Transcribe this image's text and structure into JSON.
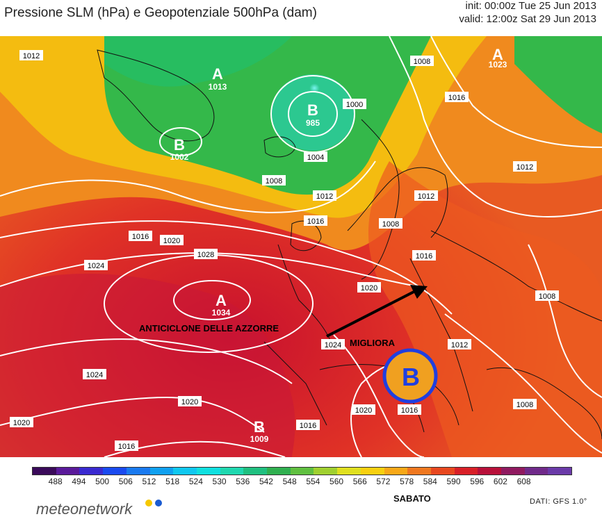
{
  "header": {
    "title": "Pressione SLM (hPa) e Geopotenziale 500hPa (dam)",
    "init": "init: 00:00z Tue 25 Jun 2013",
    "valid": "valid: 12:00z Sat 29 Jun 2013"
  },
  "map": {
    "centers": [
      {
        "type": "A",
        "value": "1013"
      },
      {
        "type": "B",
        "value": "985"
      },
      {
        "type": "B",
        "value": "1002"
      },
      {
        "type": "A",
        "value": "1034"
      },
      {
        "type": "B",
        "value": "1009"
      },
      {
        "type": "A",
        "value": "1023"
      }
    ],
    "isobar_labels": [
      "1012",
      "1008",
      "1000",
      "1004",
      "1008",
      "1012",
      "1016",
      "1020",
      "1024",
      "1028",
      "1016",
      "1008",
      "1012",
      "1016",
      "1020",
      "1024",
      "1020",
      "1016",
      "1020",
      "1016",
      "1012",
      "1008",
      "1008",
      "1024",
      "1020",
      "1016",
      "1012",
      "1016"
    ],
    "annotations": {
      "anticyclone": "ANTICICLONE DELLE AZZORRE",
      "improves": "MIGLIORA",
      "circled_low": "B"
    },
    "colors": {
      "arrow": "#000000",
      "circle": "#1f3fe0",
      "circled_letter": "#1f3fe0",
      "circled_fill": "#f0a020",
      "isobar": "#ffffff"
    }
  },
  "colorbar": {
    "labels": [
      "488",
      "494",
      "500",
      "506",
      "512",
      "518",
      "524",
      "530",
      "536",
      "542",
      "548",
      "554",
      "560",
      "566",
      "572",
      "578",
      "584",
      "590",
      "596",
      "602",
      "608"
    ],
    "colors": [
      "#3a0a5a",
      "#5a1a9a",
      "#3a2ad0",
      "#1a4af0",
      "#1a7af0",
      "#10a0f0",
      "#10c8f0",
      "#10e0e0",
      "#20d8b0",
      "#20c080",
      "#30b050",
      "#60c040",
      "#a0d030",
      "#e0e020",
      "#f8d010",
      "#f8a818",
      "#f07820",
      "#e84820",
      "#d82028",
      "#b8103a",
      "#901a60",
      "#702a8a",
      "#6a3aa8"
    ],
    "day": "SABATO"
  },
  "footer": {
    "brand": "meteonetwork",
    "source": "DATI:  GFS  1.0°"
  }
}
